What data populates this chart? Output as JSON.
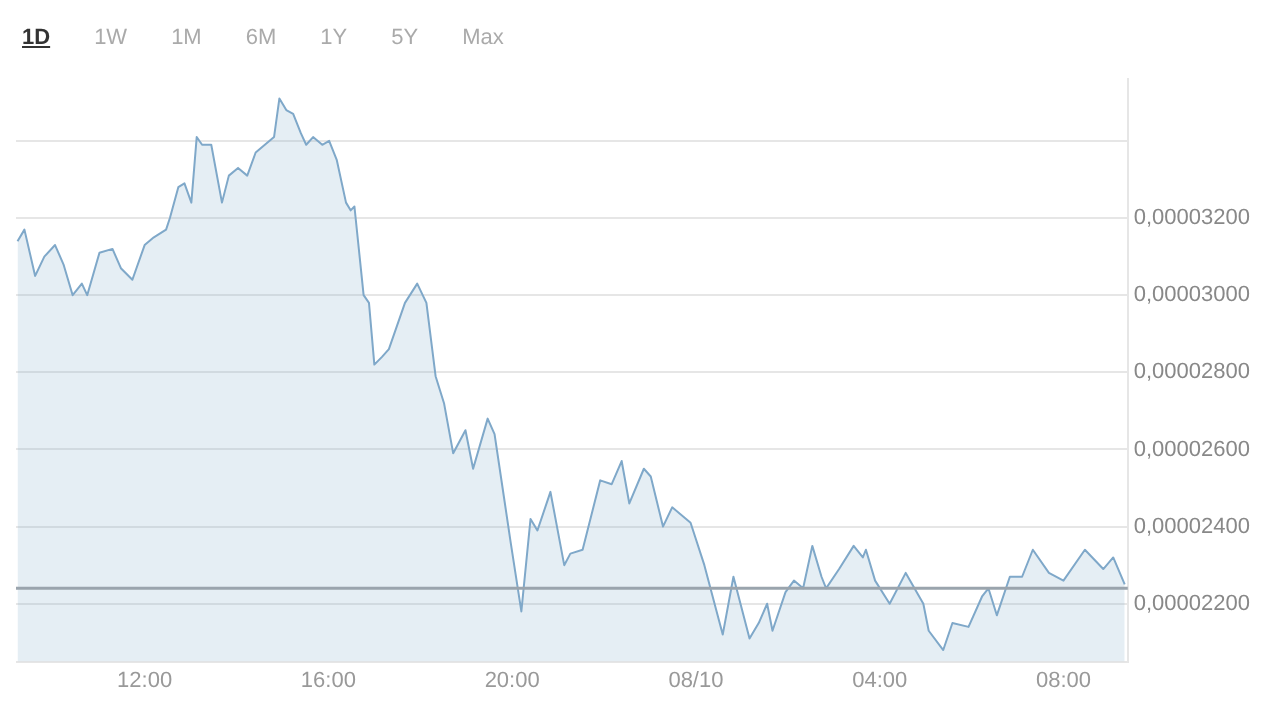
{
  "chart_data": {
    "type": "area",
    "annotations": [
      "1D",
      "1W",
      "1M",
      "6M",
      "1Y",
      "5Y",
      "Max"
    ],
    "x": [
      "--10-07T09:14",
      "--10-07T09:23",
      "--10-07T09:37",
      "--10-07T09:49",
      "--10-07T10:03",
      "--10-07T10:14",
      "--10-07T10:26",
      "--10-07T10:38",
      "--10-07T10:45",
      "--10-07T11:01",
      "--10-07T11:18",
      "--10-07T11:29",
      "--10-07T11:44",
      "--10-07T12:00",
      "--10-07T12:12",
      "--10-07T12:28",
      "--10-07T12:33",
      "--10-07T12:44",
      "--10-07T12:52",
      "--10-07T13:01",
      "--10-07T13:08",
      "--10-07T13:15",
      "--10-07T13:27",
      "--10-07T13:41",
      "--10-07T13:50",
      "--10-07T14:02",
      "--10-07T14:14",
      "--10-07T14:25",
      "--10-07T14:37",
      "--10-07T14:49",
      "--10-07T14:56",
      "--10-07T15:05",
      "--10-07T15:14",
      "--10-07T15:24",
      "--10-07T15:31",
      "--10-07T15:40",
      "--10-07T15:52",
      "--10-07T16:01",
      "--10-07T16:11",
      "--10-07T16:23",
      "--10-07T16:29",
      "--10-07T16:34",
      "--10-07T16:46",
      "--10-07T16:53",
      "--10-07T17:00",
      "--10-07T17:10",
      "--10-07T17:19",
      "--10-07T17:40",
      "--10-07T17:56",
      "--10-07T18:08",
      "--10-07T18:20",
      "--10-07T18:31",
      "--10-07T18:43",
      "--10-07T18:59",
      "--10-07T19:09",
      "--10-07T19:28",
      "--10-07T19:37",
      "--10-07T19:49",
      "--10-07T19:58",
      "--10-07T20:12",
      "--10-07T20:24",
      "--10-07T20:33",
      "--10-07T20:50",
      "--10-07T21:08",
      "--10-07T21:16",
      "--10-07T21:32",
      "--10-07T21:55",
      "--10-07T22:10",
      "--10-07T22:23",
      "--10-07T22:33",
      "--10-07T22:52",
      "--10-07T23:01",
      "--10-07T23:17",
      "--10-07T23:29",
      "--10-07T23:53",
      "--10-08T00:11",
      "--10-08T00:35",
      "--10-08T00:49",
      "--10-08T01:10",
      "--10-08T01:22",
      "--10-08T01:33",
      "--10-08T01:40",
      "--10-08T01:57",
      "--10-08T02:08",
      "--10-08T02:20",
      "--10-08T02:32",
      "--10-08T02:44",
      "--10-08T02:50",
      "--10-08T03:07",
      "--10-08T03:26",
      "--10-08T03:38",
      "--10-08T03:42",
      "--10-08T03:54",
      "--10-08T04:13",
      "--10-08T04:34",
      "--10-08T04:57",
      "--10-08T05:04",
      "--10-08T05:23",
      "--10-08T05:35",
      "--10-08T05:56",
      "--10-08T06:14",
      "--10-08T06:22",
      "--10-08T06:33",
      "--10-08T06:50",
      "--10-08T07:06",
      "--10-08T07:20",
      "--10-08T07:41",
      "--10-08T08:00",
      "--10-08T08:28",
      "--10-08T08:52",
      "--10-08T09:05",
      "--10-08T09:20"
    ],
    "series": [
      {
        "color": "#7fa8c9",
        "values": [
          3.14e-05,
          3.17e-05,
          3.05e-05,
          3.1e-05,
          3.13e-05,
          3.08e-05,
          3e-05,
          3.03e-05,
          3e-05,
          3.11e-05,
          3.12e-05,
          3.07e-05,
          3.04e-05,
          3.13e-05,
          3.15e-05,
          3.17e-05,
          3.2e-05,
          3.28e-05,
          3.29e-05,
          3.24e-05,
          3.41e-05,
          3.39e-05,
          3.39e-05,
          3.24e-05,
          3.31e-05,
          3.33e-05,
          3.31e-05,
          3.37e-05,
          3.39e-05,
          3.41e-05,
          3.51e-05,
          3.48e-05,
          3.47e-05,
          3.42e-05,
          3.39e-05,
          3.41e-05,
          3.39e-05,
          3.4e-05,
          3.35e-05,
          3.24e-05,
          3.22e-05,
          3.23e-05,
          3e-05,
          2.98e-05,
          2.82e-05,
          2.84e-05,
          2.86e-05,
          2.98e-05,
          3.03e-05,
          2.98e-05,
          2.79e-05,
          2.72e-05,
          2.59e-05,
          2.65e-05,
          2.55e-05,
          2.68e-05,
          2.64e-05,
          2.48e-05,
          2.36e-05,
          2.18e-05,
          2.42e-05,
          2.39e-05,
          2.49e-05,
          2.3e-05,
          2.33e-05,
          2.34e-05,
          2.52e-05,
          2.51e-05,
          2.57e-05,
          2.46e-05,
          2.55e-05,
          2.53e-05,
          2.4e-05,
          2.45e-05,
          2.41e-05,
          2.3e-05,
          2.12e-05,
          2.27e-05,
          2.11e-05,
          2.15e-05,
          2.2e-05,
          2.13e-05,
          2.23e-05,
          2.26e-05,
          2.24e-05,
          2.35e-05,
          2.27e-05,
          2.24e-05,
          2.29e-05,
          2.35e-05,
          2.32e-05,
          2.34e-05,
          2.26e-05,
          2.2e-05,
          2.28e-05,
          2.2e-05,
          2.13e-05,
          2.08e-05,
          2.15e-05,
          2.14e-05,
          2.22e-05,
          2.24e-05,
          2.17e-05,
          2.27e-05,
          2.27e-05,
          2.34e-05,
          2.28e-05,
          2.26e-05,
          2.34e-05,
          2.29e-05,
          2.32e-05,
          2.25e-05
        ]
      }
    ],
    "xlim": [
      "--10-07T09:12",
      "--10-08T09:24"
    ],
    "xticks": [
      {
        "value": "--10-07T12:00",
        "label": "12:00"
      },
      {
        "value": "--10-07T16:00",
        "label": "16:00"
      },
      {
        "value": "--10-07T20:00",
        "label": "20:00"
      },
      {
        "value": "--10-08",
        "label": "08/10"
      },
      {
        "value": "--10-08T04:00",
        "label": "04:00"
      },
      {
        "value": "--10-08T08:00",
        "label": "08:00"
      }
    ],
    "ylim": [
      2.05e-05,
      3.56e-05
    ],
    "yticks": [
      {
        "value": 2.2e-05,
        "label": "0,00002200"
      },
      {
        "value": 2.4e-05,
        "label": "0,00002400"
      },
      {
        "value": 2.6e-05,
        "label": "0,00002600"
      },
      {
        "value": 2.8e-05,
        "label": "0,00002800"
      },
      {
        "value": 3e-05,
        "label": "0,00003000"
      },
      {
        "value": 3.2e-05,
        "label": "0,00003200"
      },
      {
        "value": 3.4e-05,
        "label": null
      }
    ],
    "ref_lines": [
      {
        "axis": "y",
        "value": 2.24e-05,
        "color": "#9aa4ad"
      }
    ],
    "grid": "y",
    "legend": false,
    "marker": "none",
    "line_style": "solid"
  }
}
